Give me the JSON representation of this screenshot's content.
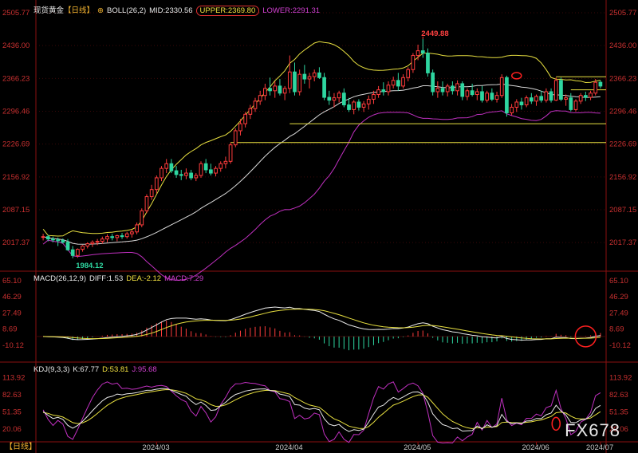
{
  "chart_data": {
    "type": "candlestick",
    "instrument": "现货黄金",
    "period": "【日线】",
    "boll": {
      "label": "BOLL(26,2)",
      "mid": "MID:2330.56",
      "upper": "UPPER:2369.80",
      "lower": "LOWER:2291.31"
    },
    "macd": {
      "label": "MACD(26,12,9)",
      "diff": "DIFF:1.53",
      "dea": "DEA:-2.12",
      "macd": "MACD:7.29"
    },
    "kdj": {
      "label": "KDJ(9,3,3)",
      "k": "K:67.77",
      "d": "D:53.81",
      "j": "J:95.68"
    },
    "price_ticks": [
      "2505.77",
      "2436.00",
      "2366.23",
      "2296.46",
      "2226.69",
      "2156.92",
      "2087.15",
      "2017.37"
    ],
    "macd_ticks": [
      "65.10",
      "46.29",
      "27.49",
      "8.69",
      "-10.12"
    ],
    "kdj_ticks": [
      "113.92",
      "82.63",
      "51.35",
      "20.06"
    ],
    "x_ticks": [
      "2024/03",
      "2024/04",
      "2024/05",
      "2024/06",
      "2024/07"
    ],
    "annotations": {
      "high": "2449.88",
      "low": "1984.12"
    },
    "horizontal_levels": [
      2369.8,
      2342.0,
      2270.0,
      2230.0
    ],
    "candles": [
      {
        "o": 2030,
        "h": 2036,
        "l": 2022,
        "c": 2030
      },
      {
        "o": 2030,
        "h": 2034,
        "l": 2020,
        "c": 2025
      },
      {
        "o": 2025,
        "h": 2030,
        "l": 2018,
        "c": 2023
      },
      {
        "o": 2023,
        "h": 2028,
        "l": 2010,
        "c": 2022
      },
      {
        "o": 2022,
        "h": 2026,
        "l": 2015,
        "c": 2018
      },
      {
        "o": 2018,
        "h": 2025,
        "l": 2000,
        "c": 2002
      },
      {
        "o": 2002,
        "h": 2010,
        "l": 1984,
        "c": 1990
      },
      {
        "o": 1990,
        "h": 2005,
        "l": 1985,
        "c": 2003
      },
      {
        "o": 2003,
        "h": 2012,
        "l": 1998,
        "c": 2010
      },
      {
        "o": 2010,
        "h": 2018,
        "l": 2005,
        "c": 2015
      },
      {
        "o": 2015,
        "h": 2022,
        "l": 2008,
        "c": 2018
      },
      {
        "o": 2018,
        "h": 2025,
        "l": 2012,
        "c": 2020
      },
      {
        "o": 2020,
        "h": 2030,
        "l": 2015,
        "c": 2025
      },
      {
        "o": 2025,
        "h": 2035,
        "l": 2018,
        "c": 2030
      },
      {
        "o": 2030,
        "h": 2036,
        "l": 2022,
        "c": 2028
      },
      {
        "o": 2028,
        "h": 2034,
        "l": 2020,
        "c": 2032
      },
      {
        "o": 2032,
        "h": 2038,
        "l": 2025,
        "c": 2030
      },
      {
        "o": 2030,
        "h": 2040,
        "l": 2026,
        "c": 2036
      },
      {
        "o": 2036,
        "h": 2045,
        "l": 2028,
        "c": 2040
      },
      {
        "o": 2040,
        "h": 2060,
        "l": 2035,
        "c": 2055
      },
      {
        "o": 2055,
        "h": 2090,
        "l": 2050,
        "c": 2085
      },
      {
        "o": 2085,
        "h": 2120,
        "l": 2080,
        "c": 2115
      },
      {
        "o": 2115,
        "h": 2140,
        "l": 2108,
        "c": 2130
      },
      {
        "o": 2130,
        "h": 2160,
        "l": 2122,
        "c": 2155
      },
      {
        "o": 2155,
        "h": 2180,
        "l": 2148,
        "c": 2175
      },
      {
        "o": 2175,
        "h": 2195,
        "l": 2165,
        "c": 2185
      },
      {
        "o": 2185,
        "h": 2195,
        "l": 2165,
        "c": 2170
      },
      {
        "o": 2170,
        "h": 2180,
        "l": 2155,
        "c": 2162
      },
      {
        "o": 2162,
        "h": 2172,
        "l": 2150,
        "c": 2160
      },
      {
        "o": 2160,
        "h": 2175,
        "l": 2152,
        "c": 2165
      },
      {
        "o": 2165,
        "h": 2172,
        "l": 2150,
        "c": 2155
      },
      {
        "o": 2155,
        "h": 2165,
        "l": 2148,
        "c": 2160
      },
      {
        "o": 2160,
        "h": 2190,
        "l": 2155,
        "c": 2185
      },
      {
        "o": 2185,
        "h": 2195,
        "l": 2165,
        "c": 2172
      },
      {
        "o": 2172,
        "h": 2185,
        "l": 2160,
        "c": 2165
      },
      {
        "o": 2165,
        "h": 2180,
        "l": 2158,
        "c": 2175
      },
      {
        "o": 2175,
        "h": 2190,
        "l": 2168,
        "c": 2185
      },
      {
        "o": 2185,
        "h": 2200,
        "l": 2175,
        "c": 2190
      },
      {
        "o": 2190,
        "h": 2230,
        "l": 2185,
        "c": 2225
      },
      {
        "o": 2225,
        "h": 2260,
        "l": 2220,
        "c": 2255
      },
      {
        "o": 2255,
        "h": 2280,
        "l": 2245,
        "c": 2270
      },
      {
        "o": 2270,
        "h": 2295,
        "l": 2262,
        "c": 2290
      },
      {
        "o": 2290,
        "h": 2310,
        "l": 2280,
        "c": 2302
      },
      {
        "o": 2302,
        "h": 2325,
        "l": 2295,
        "c": 2318
      },
      {
        "o": 2318,
        "h": 2340,
        "l": 2310,
        "c": 2330
      },
      {
        "o": 2330,
        "h": 2355,
        "l": 2320,
        "c": 2345
      },
      {
        "o": 2345,
        "h": 2368,
        "l": 2330,
        "c": 2340
      },
      {
        "o": 2340,
        "h": 2360,
        "l": 2325,
        "c": 2350
      },
      {
        "o": 2350,
        "h": 2365,
        "l": 2330,
        "c": 2335
      },
      {
        "o": 2335,
        "h": 2350,
        "l": 2320,
        "c": 2345
      },
      {
        "o": 2345,
        "h": 2415,
        "l": 2335,
        "c": 2380
      },
      {
        "o": 2380,
        "h": 2400,
        "l": 2330,
        "c": 2338
      },
      {
        "o": 2338,
        "h": 2385,
        "l": 2330,
        "c": 2375
      },
      {
        "o": 2375,
        "h": 2395,
        "l": 2355,
        "c": 2365
      },
      {
        "o": 2365,
        "h": 2378,
        "l": 2345,
        "c": 2370
      },
      {
        "o": 2370,
        "h": 2385,
        "l": 2360,
        "c": 2378
      },
      {
        "o": 2378,
        "h": 2390,
        "l": 2365,
        "c": 2368
      },
      {
        "o": 2368,
        "h": 2378,
        "l": 2320,
        "c": 2326
      },
      {
        "o": 2326,
        "h": 2340,
        "l": 2310,
        "c": 2320
      },
      {
        "o": 2320,
        "h": 2335,
        "l": 2305,
        "c": 2325
      },
      {
        "o": 2325,
        "h": 2340,
        "l": 2315,
        "c": 2335
      },
      {
        "o": 2335,
        "h": 2345,
        "l": 2305,
        "c": 2310
      },
      {
        "o": 2310,
        "h": 2325,
        "l": 2295,
        "c": 2300
      },
      {
        "o": 2300,
        "h": 2320,
        "l": 2290,
        "c": 2316
      },
      {
        "o": 2316,
        "h": 2322,
        "l": 2298,
        "c": 2305
      },
      {
        "o": 2305,
        "h": 2318,
        "l": 2295,
        "c": 2312
      },
      {
        "o": 2312,
        "h": 2330,
        "l": 2300,
        "c": 2322
      },
      {
        "o": 2322,
        "h": 2340,
        "l": 2312,
        "c": 2332
      },
      {
        "o": 2332,
        "h": 2350,
        "l": 2325,
        "c": 2342
      },
      {
        "o": 2342,
        "h": 2358,
        "l": 2330,
        "c": 2338
      },
      {
        "o": 2338,
        "h": 2360,
        "l": 2330,
        "c": 2352
      },
      {
        "o": 2352,
        "h": 2370,
        "l": 2345,
        "c": 2362
      },
      {
        "o": 2362,
        "h": 2378,
        "l": 2340,
        "c": 2350
      },
      {
        "o": 2350,
        "h": 2375,
        "l": 2345,
        "c": 2368
      },
      {
        "o": 2368,
        "h": 2390,
        "l": 2360,
        "c": 2385
      },
      {
        "o": 2385,
        "h": 2420,
        "l": 2378,
        "c": 2415
      },
      {
        "o": 2415,
        "h": 2438,
        "l": 2405,
        "c": 2425
      },
      {
        "o": 2425,
        "h": 2450,
        "l": 2410,
        "c": 2420
      },
      {
        "o": 2420,
        "h": 2430,
        "l": 2370,
        "c": 2378
      },
      {
        "o": 2378,
        "h": 2385,
        "l": 2330,
        "c": 2338
      },
      {
        "o": 2338,
        "h": 2360,
        "l": 2325,
        "c": 2345
      },
      {
        "o": 2345,
        "h": 2360,
        "l": 2330,
        "c": 2338
      },
      {
        "o": 2338,
        "h": 2355,
        "l": 2328,
        "c": 2350
      },
      {
        "o": 2350,
        "h": 2360,
        "l": 2332,
        "c": 2340
      },
      {
        "o": 2340,
        "h": 2362,
        "l": 2330,
        "c": 2355
      },
      {
        "o": 2355,
        "h": 2360,
        "l": 2320,
        "c": 2328
      },
      {
        "o": 2328,
        "h": 2345,
        "l": 2320,
        "c": 2340
      },
      {
        "o": 2340,
        "h": 2355,
        "l": 2328,
        "c": 2332
      },
      {
        "o": 2332,
        "h": 2345,
        "l": 2320,
        "c": 2338
      },
      {
        "o": 2338,
        "h": 2350,
        "l": 2315,
        "c": 2320
      },
      {
        "o": 2320,
        "h": 2340,
        "l": 2315,
        "c": 2335
      },
      {
        "o": 2335,
        "h": 2345,
        "l": 2318,
        "c": 2322
      },
      {
        "o": 2322,
        "h": 2338,
        "l": 2315,
        "c": 2330
      },
      {
        "o": 2330,
        "h": 2375,
        "l": 2325,
        "c": 2368
      },
      {
        "o": 2368,
        "h": 2372,
        "l": 2285,
        "c": 2293
      },
      {
        "o": 2293,
        "h": 2312,
        "l": 2288,
        "c": 2305
      },
      {
        "o": 2305,
        "h": 2322,
        "l": 2295,
        "c": 2316
      },
      {
        "o": 2316,
        "h": 2325,
        "l": 2300,
        "c": 2310
      },
      {
        "o": 2310,
        "h": 2330,
        "l": 2305,
        "c": 2325
      },
      {
        "o": 2325,
        "h": 2335,
        "l": 2312,
        "c": 2318
      },
      {
        "o": 2318,
        "h": 2332,
        "l": 2308,
        "c": 2328
      },
      {
        "o": 2328,
        "h": 2340,
        "l": 2315,
        "c": 2320
      },
      {
        "o": 2320,
        "h": 2345,
        "l": 2315,
        "c": 2338
      },
      {
        "o": 2338,
        "h": 2345,
        "l": 2315,
        "c": 2320
      },
      {
        "o": 2320,
        "h": 2368,
        "l": 2318,
        "c": 2362
      },
      {
        "o": 2362,
        "h": 2368,
        "l": 2318,
        "c": 2322
      },
      {
        "o": 2322,
        "h": 2332,
        "l": 2308,
        "c": 2325
      },
      {
        "o": 2325,
        "h": 2335,
        "l": 2296,
        "c": 2300
      },
      {
        "o": 2300,
        "h": 2322,
        "l": 2296,
        "c": 2318
      },
      {
        "o": 2318,
        "h": 2335,
        "l": 2312,
        "c": 2330
      },
      {
        "o": 2330,
        "h": 2338,
        "l": 2318,
        "c": 2326
      },
      {
        "o": 2326,
        "h": 2340,
        "l": 2320,
        "c": 2335
      },
      {
        "o": 2335,
        "h": 2365,
        "l": 2330,
        "c": 2358
      },
      {
        "o": 2358,
        "h": 2362,
        "l": 2345,
        "c": 2350
      }
    ]
  }
}
